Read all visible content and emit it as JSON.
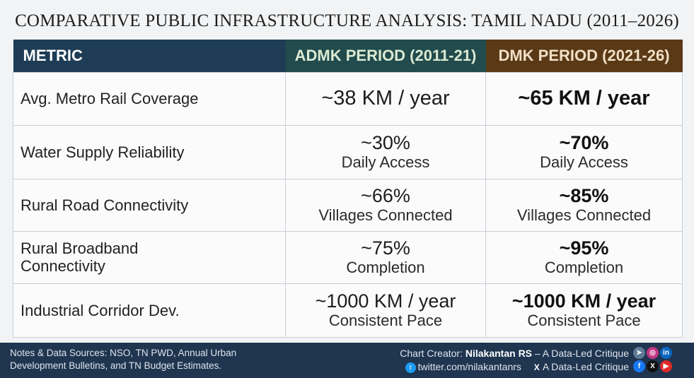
{
  "title": "COMPARATIVE PUBLIC INFRASTRUCTURE ANALYSIS: TAMIL NADU (2011–2026)",
  "chart_data": {
    "type": "table",
    "columns": [
      "METRIC",
      "ADMK PERIOD (2011-21)",
      "DMK PERIOD (2021-26)"
    ],
    "column_colors": [
      "#1e3c55",
      "#214b4c",
      "#5a3916"
    ],
    "rows": [
      {
        "metric": "Avg. Metro Rail Coverage",
        "admk": {
          "main": "~38 KM / year",
          "sub": ""
        },
        "dmk": {
          "main": "~65 KM / year",
          "sub": ""
        }
      },
      {
        "metric": "Water Supply Reliability",
        "admk": {
          "main": "~30%",
          "sub": "Daily Access"
        },
        "dmk": {
          "main": "~70%",
          "sub": "Daily Access"
        }
      },
      {
        "metric": "Rural Road Connectivity",
        "admk": {
          "main": "~66%",
          "sub": "Villages Connected"
        },
        "dmk": {
          "main": "~85%",
          "sub": "Villages Connected"
        }
      },
      {
        "metric": "Rural Broadband Connectivity",
        "admk": {
          "main": "~75%",
          "sub": "Completion"
        },
        "dmk": {
          "main": "~95%",
          "sub": "Completion"
        }
      },
      {
        "metric": "Industrial Corridor Dev.",
        "admk": {
          "main": "~1000 KM / year",
          "sub": "Consistent Pace"
        },
        "dmk": {
          "main": "~1000 KM / year",
          "sub": "Consistent Pace"
        }
      }
    ]
  },
  "footer": {
    "notes": "Notes & Data Sources: NSO, TN PWD, Annual Urban Development Bulletins, and TN Budget Estimates.",
    "creator_prefix": "Chart Creator:",
    "creator_name": "Nilakantan RS",
    "creator_suffix": "– A Data-Led Critique",
    "twitter": "twitter.com/nilakantanrs",
    "x_handle": "A Data-Led Critique"
  }
}
